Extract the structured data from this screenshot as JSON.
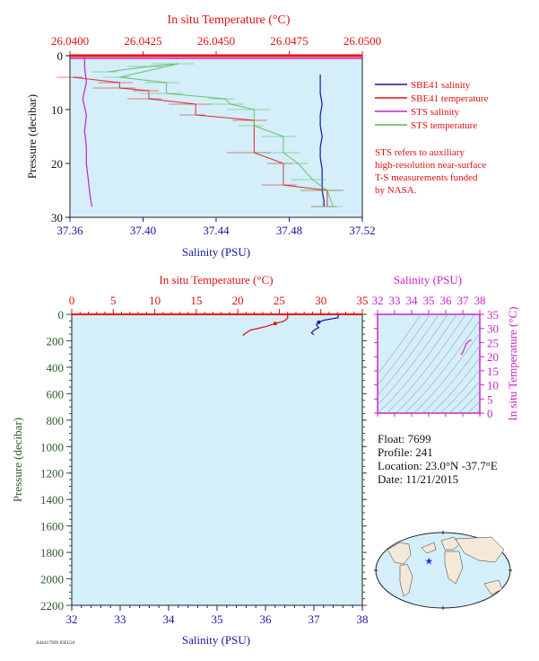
{
  "chart_data": [
    {
      "type": "line",
      "panel": "near-surface profile",
      "xlabel_bottom": "Salinity (PSU)",
      "xlabel_top": "In situ Temperature (°C)",
      "ylabel": "Pressure (decibar)",
      "xlim_salinity": [
        37.36,
        37.52
      ],
      "xlim_temperature": [
        26.04,
        26.05
      ],
      "ylim": [
        0,
        30
      ],
      "salinity_ticks": [
        "37.36",
        "37.40",
        "37.44",
        "37.48",
        "37.52"
      ],
      "temperature_ticks": [
        "26.0400",
        "26.0425",
        "26.0450",
        "26.0475",
        "26.0500"
      ],
      "pressure_ticks": [
        "0",
        "10",
        "20",
        "30"
      ],
      "series": [
        {
          "name": "SBE41 salinity",
          "color": "#1515a0",
          "axis": "salinity",
          "points": [
            [
              37.497,
              3.5
            ],
            [
              37.497,
              5
            ],
            [
              37.497,
              7
            ],
            [
              37.498,
              9
            ],
            [
              37.497,
              11
            ],
            [
              37.497,
              13
            ],
            [
              37.498,
              15
            ],
            [
              37.497,
              17
            ],
            [
              37.497,
              19
            ],
            [
              37.498,
              21
            ],
            [
              37.498,
              23
            ],
            [
              37.498,
              25
            ],
            [
              37.499,
              27
            ],
            [
              37.499,
              28
            ]
          ]
        },
        {
          "name": "SBE41 temperature",
          "color": "#dd1111",
          "axis": "temperature",
          "points": [
            [
              26.0401,
              4
            ],
            [
              26.0417,
              5
            ],
            [
              26.0417,
              6
            ],
            [
              26.0427,
              6.5
            ],
            [
              26.0427,
              8
            ],
            [
              26.0443,
              9
            ],
            [
              26.0443,
              11
            ],
            [
              26.0463,
              12
            ],
            [
              26.0463,
              18
            ],
            [
              26.0473,
              20
            ],
            [
              26.0473,
              24
            ],
            [
              26.0488,
              25
            ],
            [
              26.0488,
              28
            ]
          ]
        },
        {
          "name": "STS salinity",
          "color": "#cc22cc",
          "axis": "salinity",
          "points": [
            [
              37.368,
              0
            ],
            [
              37.368,
              2
            ],
            [
              37.369,
              5
            ],
            [
              37.367,
              8
            ],
            [
              37.369,
              11
            ],
            [
              37.368,
              14
            ],
            [
              37.369,
              17
            ],
            [
              37.369,
              20
            ],
            [
              37.37,
              23
            ],
            [
              37.371,
              26
            ],
            [
              37.372,
              28
            ]
          ]
        },
        {
          "name": "STS temperature",
          "color": "#55bb55",
          "axis": "temperature",
          "points": [
            [
              26.0413,
              3
            ],
            [
              26.0427,
              2
            ],
            [
              26.0437,
              1.5
            ],
            [
              26.0417,
              4
            ],
            [
              26.0433,
              5
            ],
            [
              26.0433,
              7
            ],
            [
              26.0453,
              8
            ],
            [
              26.0455,
              9
            ],
            [
              26.0463,
              10
            ],
            [
              26.0463,
              13
            ],
            [
              26.0473,
              15
            ],
            [
              26.0473,
              18
            ],
            [
              26.0478,
              20
            ],
            [
              26.0483,
              23
            ],
            [
              26.0488,
              25
            ],
            [
              26.049,
              28
            ]
          ]
        }
      ],
      "legend": [
        {
          "label": "SBE41 salinity",
          "color": "#1515a0"
        },
        {
          "label": "SBE41 temperature",
          "color": "#dd1111"
        },
        {
          "label": "STS salinity",
          "color": "#cc22cc"
        },
        {
          "label": "STS temperature",
          "color": "#55bb55"
        }
      ],
      "note": [
        "STS refers to auxiliary",
        "high-resolution near-surface",
        "T-S measurements funded",
        "by NASA."
      ]
    },
    {
      "type": "line",
      "panel": "full profile",
      "xlabel_bottom": "Salinity (PSU)",
      "xlabel_top": "In situ Temperature (°C)",
      "ylabel": "Pressure (decibar)",
      "xlim_salinity": [
        32,
        38
      ],
      "xlim_temperature": [
        0,
        35
      ],
      "ylim": [
        0,
        2200
      ],
      "salinity_ticks": [
        "32",
        "33",
        "34",
        "35",
        "36",
        "37",
        "38"
      ],
      "temperature_ticks": [
        "0",
        "5",
        "10",
        "15",
        "20",
        "25",
        "30",
        "35"
      ],
      "pressure_ticks": [
        "0",
        "200",
        "400",
        "600",
        "800",
        "1000",
        "1200",
        "1400",
        "1600",
        "1800",
        "2000",
        "2200"
      ],
      "series": [
        {
          "name": "temperature",
          "color": "#dd1111",
          "axis": "temperature",
          "points": [
            [
              26.0,
              0
            ],
            [
              26.0,
              30
            ],
            [
              25.6,
              50
            ],
            [
              24.5,
              70
            ],
            [
              23.5,
              90
            ],
            [
              22.5,
              105
            ],
            [
              21.5,
              120
            ],
            [
              21.0,
              140
            ],
            [
              20.6,
              160
            ]
          ]
        },
        {
          "name": "salinity",
          "color": "#1515a0",
          "axis": "salinity",
          "points": [
            [
              37.5,
              0
            ],
            [
              37.5,
              25
            ],
            [
              37.35,
              35
            ],
            [
              37.2,
              45
            ],
            [
              37.1,
              60
            ],
            [
              37.05,
              80
            ],
            [
              37.1,
              100
            ],
            [
              37.0,
              120
            ],
            [
              36.95,
              140
            ],
            [
              37.0,
              155
            ]
          ]
        }
      ]
    },
    {
      "type": "scatter",
      "panel": "T-S diagram",
      "xlabel": "Salinity (PSU)",
      "ylabel": "In situ Temperature (°C)",
      "xlim": [
        32,
        38
      ],
      "ylim": [
        0,
        35
      ],
      "x_ticks": [
        "32",
        "33",
        "34",
        "35",
        "36",
        "37",
        "38"
      ],
      "y_ticks": [
        "0",
        "5",
        "10",
        "15",
        "20",
        "25",
        "30",
        "35"
      ],
      "points": [
        [
          36.9,
          20.7
        ],
        [
          37.0,
          21.5
        ],
        [
          37.1,
          23
        ],
        [
          37.2,
          24.5
        ],
        [
          37.35,
          25.5
        ],
        [
          37.5,
          26
        ]
      ]
    }
  ],
  "info": {
    "float": "Float:  7699",
    "profile": "Profile:  241",
    "location": "Location:  23.0°N  -37.7°E",
    "date": "Date:  11/21/2015"
  },
  "map": {
    "marker_lon": -37.7,
    "marker_lat": 23.0
  },
  "footer_code": "A4441/7699 IOEU24"
}
